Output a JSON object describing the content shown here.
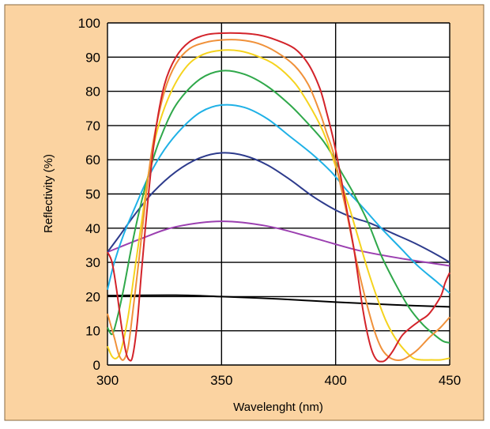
{
  "chart_data": {
    "type": "line",
    "title": "",
    "xlabel": "Wavelenght (nm)",
    "ylabel": "Reflectivity (%)",
    "xlim": [
      300,
      450
    ],
    "ylim": [
      0,
      100
    ],
    "x_ticks": [
      300,
      350,
      400,
      450
    ],
    "y_ticks": [
      0,
      10,
      20,
      30,
      40,
      50,
      60,
      70,
      80,
      90,
      100
    ],
    "grid": true,
    "legend": "none",
    "colors": {
      "background": "#fbd3a1",
      "plot_area": "#ffffff",
      "grid": "#000000",
      "frame": "#8a6a3f"
    },
    "series": [
      {
        "color": "#000000",
        "points": [
          [
            300,
            20.3
          ],
          [
            330,
            20.4
          ],
          [
            350,
            20
          ],
          [
            375,
            19.3
          ],
          [
            400,
            18.4
          ],
          [
            425,
            17.6
          ],
          [
            450,
            17
          ]
        ]
      },
      {
        "color": "#9b3fb0",
        "points": [
          [
            300,
            33
          ],
          [
            315,
            37
          ],
          [
            330,
            40.4
          ],
          [
            350,
            42
          ],
          [
            370,
            40.6
          ],
          [
            390,
            37.2
          ],
          [
            410,
            33.5
          ],
          [
            430,
            31
          ],
          [
            450,
            29
          ]
        ]
      },
      {
        "color": "#2d3b8c",
        "points": [
          [
            300,
            33
          ],
          [
            305,
            37.5
          ],
          [
            312,
            44
          ],
          [
            320,
            50.5
          ],
          [
            330,
            56.5
          ],
          [
            340,
            60.4
          ],
          [
            350,
            62
          ],
          [
            360,
            61.2
          ],
          [
            370,
            58.5
          ],
          [
            380,
            54.2
          ],
          [
            390,
            49.3
          ],
          [
            400,
            45.3
          ],
          [
            408,
            43
          ],
          [
            415,
            41.5
          ],
          [
            425,
            38.5
          ],
          [
            435,
            35.5
          ],
          [
            445,
            32
          ],
          [
            450,
            30
          ]
        ]
      },
      {
        "color": "#1fb1e6",
        "points": [
          [
            300,
            22
          ],
          [
            303,
            30
          ],
          [
            307,
            38
          ],
          [
            312,
            46
          ],
          [
            318,
            55
          ],
          [
            325,
            63
          ],
          [
            333,
            69.5
          ],
          [
            341,
            74
          ],
          [
            350,
            76
          ],
          [
            360,
            75.3
          ],
          [
            370,
            72
          ],
          [
            380,
            66.8
          ],
          [
            390,
            61.5
          ],
          [
            398,
            56.5
          ],
          [
            405,
            51
          ],
          [
            412,
            46
          ],
          [
            420,
            40
          ],
          [
            428,
            34.5
          ],
          [
            436,
            29
          ],
          [
            444,
            24.5
          ],
          [
            450,
            21
          ]
        ]
      },
      {
        "color": "#2fa84a",
        "points": [
          [
            300,
            11
          ],
          [
            302,
            9
          ],
          [
            304,
            13
          ],
          [
            307,
            22
          ],
          [
            311,
            36
          ],
          [
            315,
            48
          ],
          [
            319,
            58
          ],
          [
            323,
            66
          ],
          [
            330,
            76
          ],
          [
            340,
            83.3
          ],
          [
            350,
            86
          ],
          [
            360,
            85
          ],
          [
            370,
            81.5
          ],
          [
            380,
            76
          ],
          [
            388,
            70.5
          ],
          [
            394,
            66
          ],
          [
            398,
            62
          ],
          [
            402,
            57
          ],
          [
            408,
            50
          ],
          [
            414,
            42
          ],
          [
            420,
            32
          ],
          [
            426,
            24
          ],
          [
            432,
            17
          ],
          [
            438,
            12
          ],
          [
            443,
            9
          ],
          [
            447,
            7
          ],
          [
            450,
            6.5
          ]
        ]
      },
      {
        "color": "#f5d31e",
        "points": [
          [
            300,
            5.5
          ],
          [
            302,
            2.5
          ],
          [
            304,
            2
          ],
          [
            306,
            4.5
          ],
          [
            309,
            14
          ],
          [
            312,
            28
          ],
          [
            315,
            42
          ],
          [
            318,
            56
          ],
          [
            322,
            69
          ],
          [
            328,
            80
          ],
          [
            335,
            87.5
          ],
          [
            342,
            90.8
          ],
          [
            350,
            92
          ],
          [
            358,
            91.8
          ],
          [
            366,
            90.2
          ],
          [
            374,
            87.5
          ],
          [
            382,
            82.5
          ],
          [
            388,
            76.5
          ],
          [
            394,
            69
          ],
          [
            398,
            62
          ],
          [
            402,
            54
          ],
          [
            406,
            46
          ],
          [
            410,
            37
          ],
          [
            414,
            28
          ],
          [
            418,
            20
          ],
          [
            422,
            13
          ],
          [
            426,
            8
          ],
          [
            430,
            4.5
          ],
          [
            434,
            2
          ],
          [
            438,
            1.5
          ],
          [
            442,
            1.5
          ],
          [
            446,
            1.5
          ],
          [
            450,
            2
          ]
        ]
      },
      {
        "color": "#f0913a",
        "points": [
          [
            300,
            15
          ],
          [
            303,
            8
          ],
          [
            305,
            3
          ],
          [
            307,
            1.5
          ],
          [
            309,
            5
          ],
          [
            311,
            15
          ],
          [
            314,
            32
          ],
          [
            317,
            50
          ],
          [
            320,
            65
          ],
          [
            325,
            80
          ],
          [
            330,
            88
          ],
          [
            336,
            92.5
          ],
          [
            343,
            94.3
          ],
          [
            350,
            95
          ],
          [
            358,
            95
          ],
          [
            366,
            94
          ],
          [
            374,
            91.5
          ],
          [
            382,
            87.5
          ],
          [
            388,
            82
          ],
          [
            393,
            74
          ],
          [
            396,
            68
          ],
          [
            399,
            62
          ],
          [
            402,
            53
          ],
          [
            405,
            44
          ],
          [
            408,
            34
          ],
          [
            411,
            25
          ],
          [
            414,
            17
          ],
          [
            417,
            10
          ],
          [
            420,
            5
          ],
          [
            423,
            2.5
          ],
          [
            426,
            1.5
          ],
          [
            429,
            1.5
          ],
          [
            432,
            2.5
          ],
          [
            436,
            4.5
          ],
          [
            441,
            8
          ],
          [
            446,
            11
          ],
          [
            450,
            14
          ]
        ]
      },
      {
        "color": "#d3232a",
        "points": [
          [
            300,
            33
          ],
          [
            302,
            30
          ],
          [
            304,
            22
          ],
          [
            306,
            12
          ],
          [
            308,
            4
          ],
          [
            309.5,
            1.5
          ],
          [
            311,
            2.5
          ],
          [
            313,
            12
          ],
          [
            315,
            28
          ],
          [
            318,
            50
          ],
          [
            321,
            68
          ],
          [
            325,
            82
          ],
          [
            330,
            90
          ],
          [
            336,
            94.5
          ],
          [
            343,
            96.5
          ],
          [
            350,
            97
          ],
          [
            358,
            97
          ],
          [
            366,
            96.5
          ],
          [
            374,
            95
          ],
          [
            382,
            92.5
          ],
          [
            388,
            88
          ],
          [
            393,
            81
          ],
          [
            396,
            74
          ],
          [
            399,
            66
          ],
          [
            402,
            56
          ],
          [
            405,
            45
          ],
          [
            408,
            34
          ],
          [
            410,
            25
          ],
          [
            412,
            16
          ],
          [
            414,
            9
          ],
          [
            416,
            4
          ],
          [
            418,
            1.5
          ],
          [
            420,
            1
          ],
          [
            422,
            1.5
          ],
          [
            425,
            4
          ],
          [
            429,
            8.5
          ],
          [
            433,
            11
          ],
          [
            437,
            13
          ],
          [
            441,
            15
          ],
          [
            446,
            20
          ],
          [
            448,
            24
          ],
          [
            450,
            27
          ]
        ]
      }
    ]
  }
}
